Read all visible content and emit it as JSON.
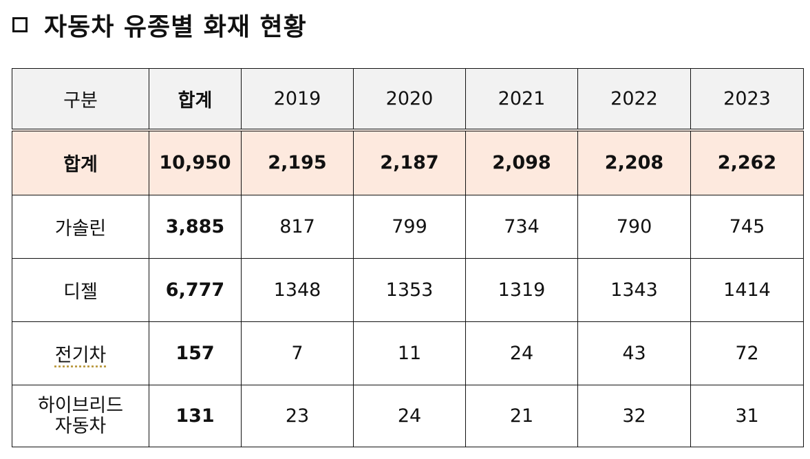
{
  "title": {
    "bullet_icon": "square-outline-icon",
    "text": "자동차 유종별 화재 현황"
  },
  "table": {
    "headers": [
      "구분",
      "합계",
      "2019",
      "2020",
      "2021",
      "2022",
      "2023"
    ],
    "total_row": {
      "label": "합계",
      "sum": "10,950",
      "values": [
        "2,195",
        "2,187",
        "2,098",
        "2,208",
        "2,262"
      ]
    },
    "rows": [
      {
        "label": "가솔린",
        "sum": "3,885",
        "values": [
          "817",
          "799",
          "734",
          "790",
          "745"
        ]
      },
      {
        "label": "디젤",
        "sum": "6,777",
        "values": [
          "1348",
          "1353",
          "1319",
          "1343",
          "1414"
        ]
      },
      {
        "label": "전기차",
        "sum": "157",
        "values": [
          "7",
          "11",
          "24",
          "43",
          "72"
        ]
      },
      {
        "label_line1": "하이브리드",
        "label_line2": "자동차",
        "sum": "131",
        "values": [
          "23",
          "24",
          "21",
          "32",
          "31"
        ]
      }
    ]
  },
  "colors": {
    "header_bg": "#f2f2f2",
    "total_row_bg": "#fde9de",
    "border": "#111111"
  },
  "chart_data": {
    "type": "table",
    "title": "자동차 유종별 화재 현황",
    "categories": [
      "2019",
      "2020",
      "2021",
      "2022",
      "2023"
    ],
    "series": [
      {
        "name": "합계",
        "total": 10950,
        "values": [
          2195,
          2187,
          2098,
          2208,
          2262
        ]
      },
      {
        "name": "가솔린",
        "total": 3885,
        "values": [
          817,
          799,
          734,
          790,
          745
        ]
      },
      {
        "name": "디젤",
        "total": 6777,
        "values": [
          1348,
          1353,
          1319,
          1343,
          1414
        ]
      },
      {
        "name": "전기차",
        "total": 157,
        "values": [
          7,
          11,
          24,
          43,
          72
        ]
      },
      {
        "name": "하이브리드 자동차",
        "total": 131,
        "values": [
          23,
          24,
          21,
          32,
          31
        ]
      }
    ]
  }
}
